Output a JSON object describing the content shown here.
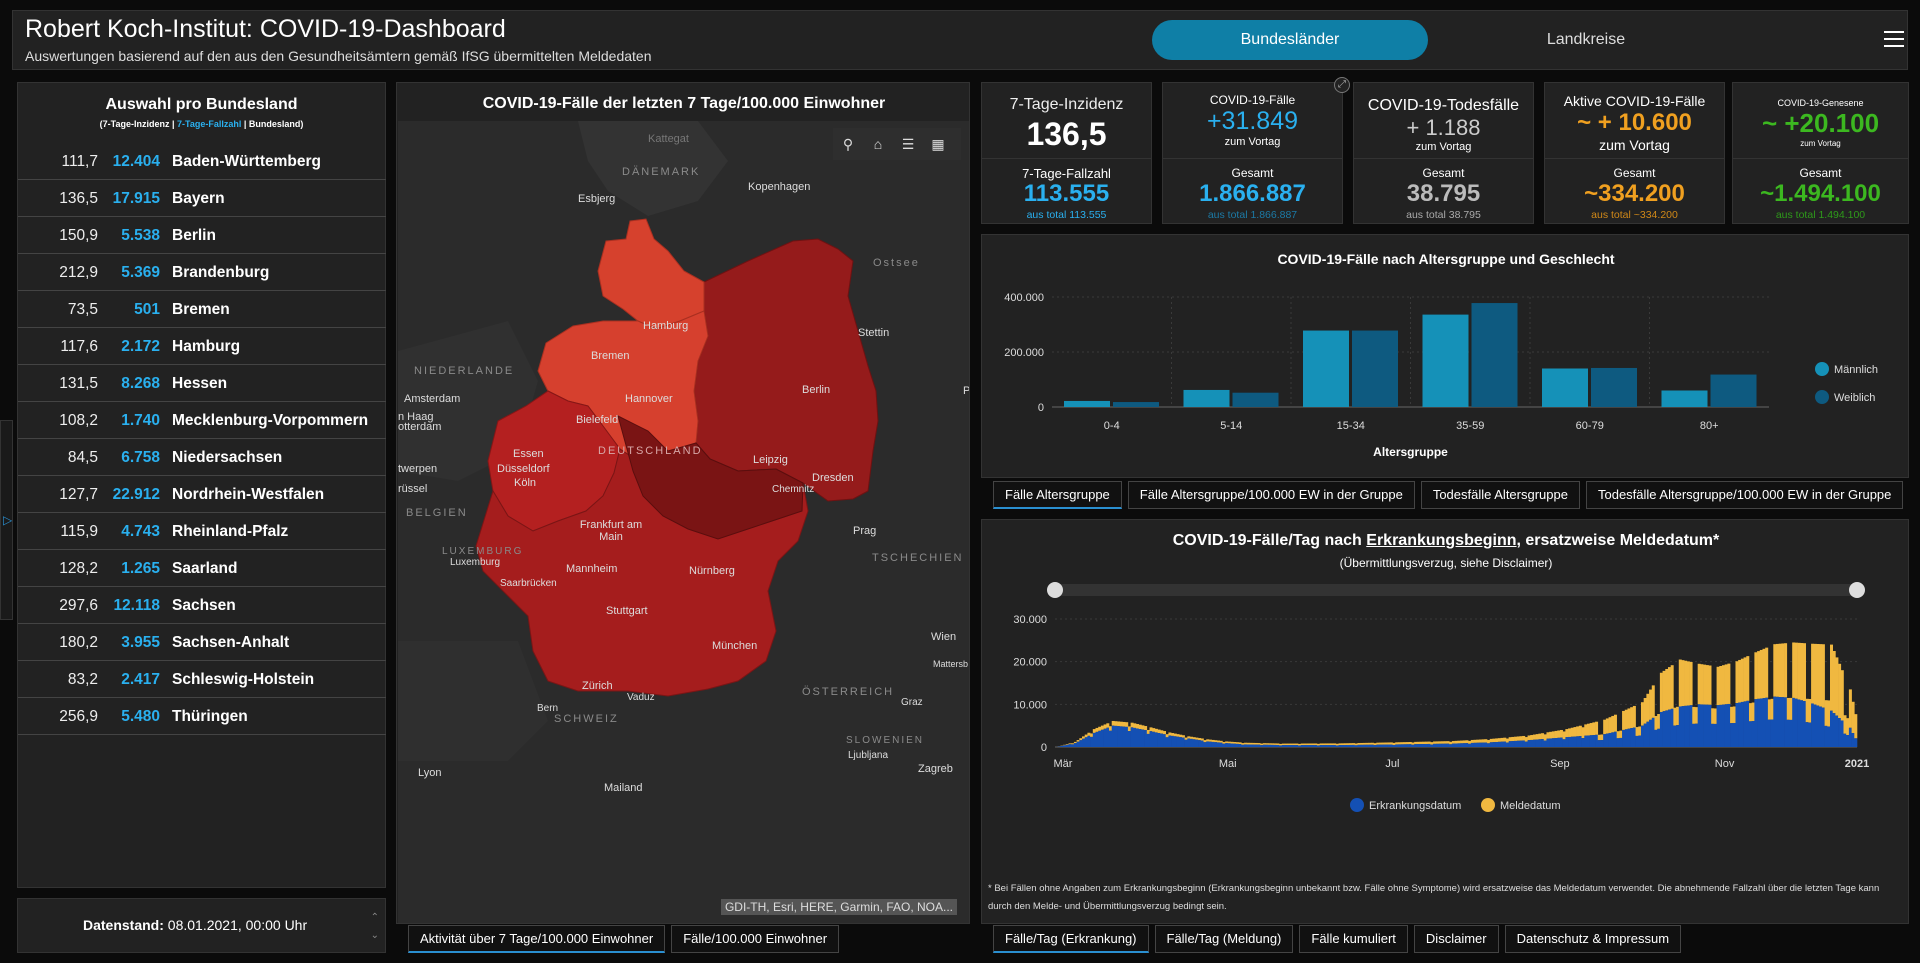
{
  "header": {
    "title": "Robert Koch-Institut: COVID-19-Dashboard",
    "subtitle": "Auswertungen basierend auf den aus den Gesundheitsämtern gemäß IfSG übermittelten Meldedaten",
    "tab_bundeslaender": "Bundesländer",
    "tab_landkreise": "Landkreise",
    "menu_icon": "hamburger-menu-icon"
  },
  "left_panel": {
    "title": "Auswahl pro Bundesland",
    "legend_a": "(7-Tage-Inzidenz | ",
    "legend_b": "7-Tage-Fallzahl",
    "legend_c": " | Bundesland)",
    "states": [
      {
        "inc": "111,7",
        "cases": "12.404",
        "name": "Baden-Württemberg"
      },
      {
        "inc": "136,5",
        "cases": "17.915",
        "name": "Bayern"
      },
      {
        "inc": "150,9",
        "cases": "5.538",
        "name": "Berlin"
      },
      {
        "inc": "212,9",
        "cases": "5.369",
        "name": "Brandenburg"
      },
      {
        "inc": "73,5",
        "cases": "501",
        "name": "Bremen"
      },
      {
        "inc": "117,6",
        "cases": "2.172",
        "name": "Hamburg"
      },
      {
        "inc": "131,5",
        "cases": "8.268",
        "name": "Hessen"
      },
      {
        "inc": "108,2",
        "cases": "1.740",
        "name": "Mecklenburg-Vorpommern"
      },
      {
        "inc": "84,5",
        "cases": "6.758",
        "name": "Niedersachsen"
      },
      {
        "inc": "127,7",
        "cases": "22.912",
        "name": "Nordrhein-Westfalen"
      },
      {
        "inc": "115,9",
        "cases": "4.743",
        "name": "Rheinland-Pfalz"
      },
      {
        "inc": "128,2",
        "cases": "1.265",
        "name": "Saarland"
      },
      {
        "inc": "297,6",
        "cases": "12.118",
        "name": "Sachsen"
      },
      {
        "inc": "180,2",
        "cases": "3.955",
        "name": "Sachsen-Anhalt"
      },
      {
        "inc": "83,2",
        "cases": "2.417",
        "name": "Schleswig-Holstein"
      },
      {
        "inc": "256,9",
        "cases": "5.480",
        "name": "Thüringen"
      }
    ],
    "datenstand_label": "Datenstand:",
    "datenstand_value": " 08.01.2021, 00:00 Uhr"
  },
  "map": {
    "title": "COVID-19-Fälle der letzten 7 Tage/100.000 Einwohner",
    "attribution": "GDI-TH, Esri, HERE, Garmin, FAO, NOA...",
    "tools": [
      "search-icon",
      "home-icon",
      "list-icon",
      "basemap-grid-icon"
    ],
    "labels": {
      "kattegat": "Kattegat",
      "daenemark": "DÄNEMARK",
      "esbjerg": "Esbjerg",
      "kopenhagen": "Kopenhagen",
      "ostsee": "Ostsee",
      "hamburg": "Hamburg",
      "stettin": "Stettin",
      "bremen": "Bremen",
      "niederlande": "NIEDERLANDE",
      "amsterdam": "Amsterdam",
      "denhaag": "n Haag",
      "rotterdam": "otterdam",
      "hannover": "Hannover",
      "berlin": "Berlin",
      "bielefeld": "Bielefeld",
      "deutschland": "DEUTSCHLAND",
      "essen": "Essen",
      "duesseldorf": "Düsseldorf",
      "leipzig": "Leipzig",
      "koeln": "Köln",
      "antwerpen": "twerpen",
      "bruessel": "rüssel",
      "dresden": "Dresden",
      "chemnitz": "Chemnitz",
      "belgien": "BELGIEN",
      "frankfurt": "Frankfurt am Main",
      "prag": "Prag",
      "luxemburg_c": "LUXEMBURG",
      "luxemburg": "Luxemburg",
      "tschechien": "TSCHECHIEN",
      "saarbruecken": "Saarbrücken",
      "mannheim": "Mannheim",
      "nuernberg": "Nürnberg",
      "stuttgart": "Stuttgart",
      "muenchen": "München",
      "wien": "Wien",
      "mattersburg": "Mattersb",
      "zuerich": "Zürich",
      "oesterreich": "ÖSTERREICH",
      "vaduz": "Vaduz",
      "graz": "Graz",
      "bern": "Bern",
      "schweiz": "SCHWEIZ",
      "slowenien": "SLOWENIEN",
      "ljubljana": "Ljubljana",
      "lyon": "Lyon",
      "zagreb": "Zagreb",
      "mailand": "Mailand",
      "p": "P"
    },
    "tab1": "Aktivität über 7 Tage/100.000 Einwohner",
    "tab2": "Fälle/100.000 Einwohner"
  },
  "kpis": {
    "inzidenz_label": "7-Tage-Inzidenz",
    "inzidenz_value": "136,5",
    "fallzahl_label": "7-Tage-Fallzahl",
    "fallzahl_value": "113.555",
    "fallzahl_total": "aus total 113.555",
    "faelle_label": "COVID-19-Fälle",
    "faelle_value": "+31.849",
    "faelle_sub": "zum Vortag",
    "faelle_gesamt_label": "Gesamt",
    "faelle_gesamt": "1.866.887",
    "faelle_total": "aus total 1.866.887",
    "tod_label": "COVID-19-Todesfälle",
    "tod_value": "+ 1.188",
    "tod_sub": "zum Vortag",
    "tod_gesamt_label": "Gesamt",
    "tod_gesamt": "38.795",
    "tod_total": "aus total 38.795",
    "aktiv_label": "Aktive COVID-19-Fälle",
    "aktiv_value": "~ + 10.600",
    "aktiv_sub": "zum Vortag",
    "aktiv_gesamt_label": "Gesamt",
    "aktiv_gesamt": "~334.200",
    "aktiv_total": "aus total ~334.200",
    "gen_label": "COVID-19-Genesene",
    "gen_value": "~ +20.100",
    "gen_sub": "zum Vortag",
    "gen_gesamt_label": "Gesamt",
    "gen_gesamt": "~1.494.100",
    "gen_total": "aus total 1.494.100",
    "colors": {
      "blue": "#2ab0ef",
      "orange": "#f0a020",
      "green": "#3cb820"
    }
  },
  "age_chart": {
    "title": "COVID-19-Fälle nach Altersgruppe und Geschlecht",
    "tabs": [
      "Fälle Altersgruppe",
      "Fälle Altersgruppe/100.000 EW in der Gruppe",
      "Todesfälle Altersgruppe",
      "Todesfälle Altersgruppe/100.000 EW in der Gruppe"
    ]
  },
  "epi_chart": {
    "title_a": "COVID-19-Fälle/Tag nach ",
    "title_b": "Erkrankungsbeginn",
    "title_c": ", ersatzweise Meldedatum*",
    "subtitle": "(Übermittlungsverzug, siehe Disclaimer)",
    "note": "* Bei Fällen ohne Angaben zum Erkrankungsbeginn (Erkrankungsbeginn unbekannt bzw. Fälle ohne Symptome) wird ersatzweise das Meldedatum verwendet. Die abnehmende Fallzahl über die letzten Tage kann durch den Melde- und Übermittlungsverzug bedingt sein.",
    "tabs": [
      "Fälle/Tag (Erkrankung)",
      "Fälle/Tag (Meldung)",
      "Fälle kumuliert",
      "Disclaimer",
      "Datenschutz & Impressum"
    ]
  },
  "chart_data": [
    {
      "type": "bar",
      "title": "COVID-19-Fälle nach Altersgruppe und Geschlecht",
      "xlabel": "Altersgruppe",
      "ylabel": "",
      "categories": [
        "0-4",
        "5-14",
        "15-34",
        "35-59",
        "60-79",
        "80+"
      ],
      "series": [
        {
          "name": "Männlich",
          "color": "#1591b8",
          "values": [
            22000,
            62000,
            278000,
            336000,
            140000,
            60000
          ]
        },
        {
          "name": "Weiblich",
          "color": "#0e5a80",
          "values": [
            18000,
            52000,
            278000,
            378000,
            142000,
            118000
          ]
        }
      ],
      "yticks": [
        "0",
        "200.000",
        "400.000"
      ],
      "ylim": [
        0,
        400000
      ],
      "legend": "right"
    },
    {
      "type": "area",
      "title": "COVID-19-Fälle/Tag nach Erkrankungsbeginn, ersatzweise Meldedatum*",
      "xlabel": "",
      "ylabel": "",
      "x_ticks": [
        "Mär",
        "Mai",
        "Jul",
        "Sep",
        "Nov",
        "2021"
      ],
      "yticks": [
        "0",
        "10.000",
        "20.000",
        "30.000"
      ],
      "ylim": [
        0,
        30000
      ],
      "series": [
        {
          "name": "Erkrankungsdatum",
          "color": "#1450b4",
          "anchors": [
            [
              0,
              0
            ],
            [
              7,
              900
            ],
            [
              14,
              3300
            ],
            [
              21,
              5000
            ],
            [
              28,
              4600
            ],
            [
              35,
              3700
            ],
            [
              42,
              2700
            ],
            [
              49,
              2000
            ],
            [
              56,
              1300
            ],
            [
              63,
              900
            ],
            [
              70,
              600
            ],
            [
              84,
              450
            ],
            [
              105,
              450
            ],
            [
              126,
              600
            ],
            [
              147,
              800
            ],
            [
              161,
              1100
            ],
            [
              175,
              1600
            ],
            [
              189,
              2300
            ],
            [
              203,
              3000
            ],
            [
              217,
              5000
            ],
            [
              224,
              8200
            ],
            [
              231,
              9500
            ],
            [
              238,
              10000
            ],
            [
              245,
              9800
            ],
            [
              252,
              10300
            ],
            [
              259,
              11200
            ],
            [
              266,
              11800
            ],
            [
              273,
              11500
            ],
            [
              280,
              10200
            ],
            [
              287,
              8500
            ],
            [
              294,
              4500
            ],
            [
              297,
              800
            ]
          ]
        },
        {
          "name": "Meldedatum",
          "color": "#f0b840",
          "anchors": [
            [
              0,
              0
            ],
            [
              7,
              300
            ],
            [
              14,
              900
            ],
            [
              21,
              1100
            ],
            [
              28,
              1100
            ],
            [
              35,
              900
            ],
            [
              42,
              700
            ],
            [
              49,
              500
            ],
            [
              56,
              500
            ],
            [
              63,
              400
            ],
            [
              70,
              400
            ],
            [
              84,
              350
            ],
            [
              105,
              400
            ],
            [
              126,
              500
            ],
            [
              147,
              600
            ],
            [
              161,
              800
            ],
            [
              175,
              1100
            ],
            [
              189,
              1900
            ],
            [
              203,
              3400
            ],
            [
              217,
              5500
            ],
            [
              224,
              9200
            ],
            [
              231,
              11000
            ],
            [
              238,
              9500
            ],
            [
              245,
              9000
            ],
            [
              252,
              9800
            ],
            [
              259,
              11000
            ],
            [
              266,
              12300
            ],
            [
              273,
              13000
            ],
            [
              280,
              14000
            ],
            [
              287,
              15500
            ],
            [
              294,
              9000
            ],
            [
              297,
              4000
            ]
          ]
        }
      ],
      "legend": "bottom"
    }
  ]
}
